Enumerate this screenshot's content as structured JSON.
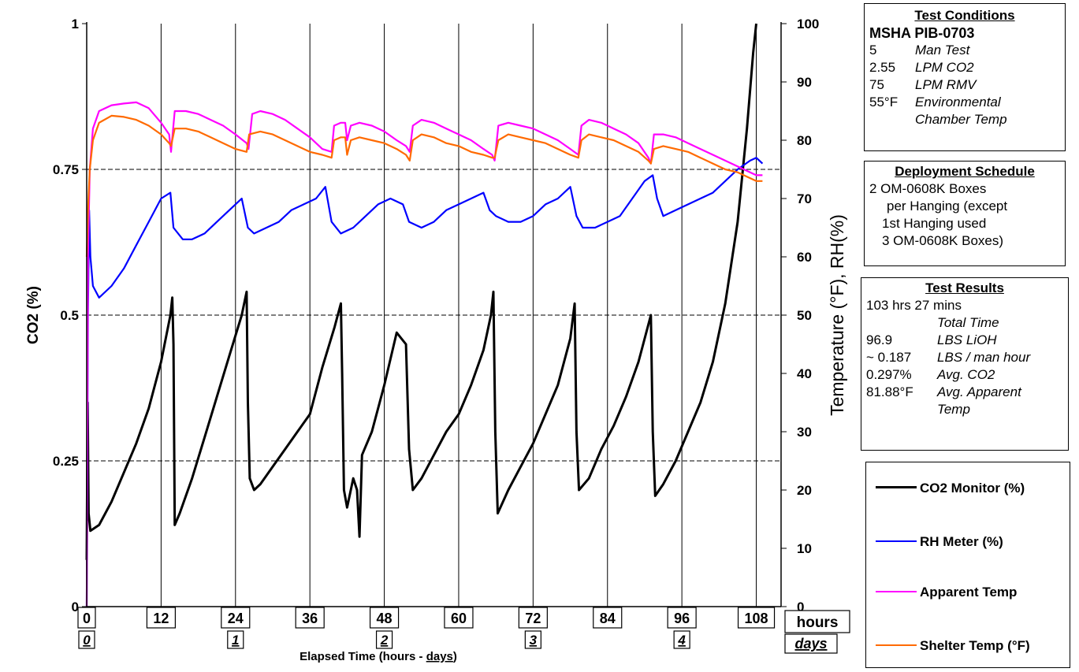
{
  "chart_data": {
    "type": "line",
    "xlabel_prefix": "Elapsed Time (hours - ",
    "xlabel_days": "days",
    "xlabel_suffix": ")",
    "ylabel_left": "CO2 (%)",
    "ylabel_right": "Temperature (°F), RH(%)",
    "xlim": [
      0,
      112
    ],
    "ylim_left": [
      0,
      1
    ],
    "ylim_right": [
      0,
      100
    ],
    "x_ticks": [
      "0",
      "12",
      "24",
      "36",
      "48",
      "60",
      "72",
      "84",
      "96",
      "108"
    ],
    "day_ticks": [
      "0",
      "1",
      "2",
      "3",
      "4"
    ],
    "y_left_ticks": [
      "0",
      "0.25",
      "0.5",
      "0.75",
      "1"
    ],
    "y_right_ticks": [
      "0",
      "10",
      "20",
      "30",
      "40",
      "50",
      "60",
      "70",
      "80",
      "90",
      "100"
    ],
    "hours_label": "hours",
    "days_label": "days",
    "series": [
      {
        "name": "CO2 Monitor (%)",
        "axis": "left",
        "color": "#000000",
        "points": [
          [
            0,
            0.08
          ],
          [
            0.15,
            0.35
          ],
          [
            0.3,
            0.16
          ],
          [
            0.6,
            0.13
          ],
          [
            2,
            0.14
          ],
          [
            4,
            0.18
          ],
          [
            6,
            0.23
          ],
          [
            8,
            0.28
          ],
          [
            10,
            0.34
          ],
          [
            12,
            0.42
          ],
          [
            13.5,
            0.5
          ],
          [
            13.8,
            0.53
          ],
          [
            14.0,
            0.45
          ],
          [
            14.2,
            0.14
          ],
          [
            15,
            0.16
          ],
          [
            17,
            0.22
          ],
          [
            19,
            0.29
          ],
          [
            21,
            0.36
          ],
          [
            23,
            0.43
          ],
          [
            25,
            0.5
          ],
          [
            25.8,
            0.54
          ],
          [
            26.0,
            0.35
          ],
          [
            26.3,
            0.22
          ],
          [
            27,
            0.2
          ],
          [
            28,
            0.21
          ],
          [
            30,
            0.24
          ],
          [
            32,
            0.27
          ],
          [
            34,
            0.3
          ],
          [
            36,
            0.33
          ],
          [
            38,
            0.41
          ],
          [
            40,
            0.48
          ],
          [
            41,
            0.52
          ],
          [
            41.2,
            0.4
          ],
          [
            41.5,
            0.2
          ],
          [
            42,
            0.17
          ],
          [
            43,
            0.22
          ],
          [
            43.6,
            0.2
          ],
          [
            44,
            0.12
          ],
          [
            44.4,
            0.26
          ],
          [
            46,
            0.3
          ],
          [
            48,
            0.38
          ],
          [
            50,
            0.47
          ],
          [
            51.5,
            0.45
          ],
          [
            52,
            0.27
          ],
          [
            52.6,
            0.2
          ],
          [
            54,
            0.22
          ],
          [
            56,
            0.26
          ],
          [
            58,
            0.3
          ],
          [
            60,
            0.33
          ],
          [
            62,
            0.38
          ],
          [
            64,
            0.44
          ],
          [
            65.2,
            0.5
          ],
          [
            65.6,
            0.54
          ],
          [
            65.9,
            0.3
          ],
          [
            66.3,
            0.16
          ],
          [
            68,
            0.2
          ],
          [
            70,
            0.24
          ],
          [
            72,
            0.28
          ],
          [
            74,
            0.33
          ],
          [
            76,
            0.38
          ],
          [
            78,
            0.46
          ],
          [
            78.7,
            0.52
          ],
          [
            79,
            0.3
          ],
          [
            79.4,
            0.2
          ],
          [
            81,
            0.22
          ],
          [
            83,
            0.27
          ],
          [
            85,
            0.31
          ],
          [
            87,
            0.36
          ],
          [
            89,
            0.42
          ],
          [
            90.5,
            0.48
          ],
          [
            91,
            0.5
          ],
          [
            91.3,
            0.3
          ],
          [
            91.7,
            0.19
          ],
          [
            93,
            0.21
          ],
          [
            95,
            0.25
          ],
          [
            97,
            0.3
          ],
          [
            99,
            0.35
          ],
          [
            101,
            0.42
          ],
          [
            103,
            0.52
          ],
          [
            105,
            0.66
          ],
          [
            106.5,
            0.82
          ],
          [
            107.5,
            0.95
          ],
          [
            108,
            1.0
          ]
        ]
      },
      {
        "name": "RH Meter (%)",
        "axis": "right",
        "color": "#0000ff",
        "points": [
          [
            0,
            0
          ],
          [
            0.2,
            50
          ],
          [
            0.4,
            68
          ],
          [
            0.6,
            60
          ],
          [
            1,
            55
          ],
          [
            2,
            53
          ],
          [
            4,
            55
          ],
          [
            6,
            58
          ],
          [
            8,
            62
          ],
          [
            10,
            66
          ],
          [
            12,
            70
          ],
          [
            13.5,
            71
          ],
          [
            14,
            65
          ],
          [
            15.5,
            63
          ],
          [
            17,
            63
          ],
          [
            19,
            64
          ],
          [
            21,
            66
          ],
          [
            23,
            68
          ],
          [
            25,
            70
          ],
          [
            26,
            65
          ],
          [
            27,
            64
          ],
          [
            29,
            65
          ],
          [
            31,
            66
          ],
          [
            33,
            68
          ],
          [
            35,
            69
          ],
          [
            37,
            70
          ],
          [
            38.5,
            72
          ],
          [
            39.5,
            66
          ],
          [
            41,
            64
          ],
          [
            43,
            65
          ],
          [
            45,
            67
          ],
          [
            47,
            69
          ],
          [
            49,
            70
          ],
          [
            51,
            69
          ],
          [
            52,
            66
          ],
          [
            54,
            65
          ],
          [
            56,
            66
          ],
          [
            58,
            68
          ],
          [
            60,
            69
          ],
          [
            62,
            70
          ],
          [
            64,
            71
          ],
          [
            65,
            68
          ],
          [
            66,
            67
          ],
          [
            68,
            66
          ],
          [
            70,
            66
          ],
          [
            72,
            67
          ],
          [
            74,
            69
          ],
          [
            76,
            70
          ],
          [
            78,
            72
          ],
          [
            79,
            67
          ],
          [
            80,
            65
          ],
          [
            82,
            65
          ],
          [
            84,
            66
          ],
          [
            86,
            67
          ],
          [
            88,
            70
          ],
          [
            90,
            73
          ],
          [
            91.3,
            74
          ],
          [
            92,
            70
          ],
          [
            93,
            67
          ],
          [
            95,
            68
          ],
          [
            97,
            69
          ],
          [
            99,
            70
          ],
          [
            101,
            71
          ],
          [
            103,
            73
          ],
          [
            105,
            75
          ],
          [
            107,
            76.5
          ],
          [
            108,
            77
          ],
          [
            109,
            76
          ]
        ]
      },
      {
        "name": "Apparent Temp",
        "axis": "right",
        "color": "#ff00ff",
        "points": [
          [
            0,
            0
          ],
          [
            0.2,
            60
          ],
          [
            0.5,
            75
          ],
          [
            1,
            82
          ],
          [
            2,
            85
          ],
          [
            4,
            86
          ],
          [
            6,
            86.3
          ],
          [
            8,
            86.5
          ],
          [
            10,
            85.5
          ],
          [
            12,
            83
          ],
          [
            13.3,
            81
          ],
          [
            13.6,
            78
          ],
          [
            14.2,
            85
          ],
          [
            16,
            85
          ],
          [
            18,
            84.5
          ],
          [
            20,
            83.5
          ],
          [
            22,
            82.5
          ],
          [
            24,
            81
          ],
          [
            25.8,
            79.5
          ],
          [
            26.1,
            78.5
          ],
          [
            26.7,
            84.5
          ],
          [
            28,
            85
          ],
          [
            30,
            84.5
          ],
          [
            32,
            83.5
          ],
          [
            34,
            82
          ],
          [
            36,
            80.5
          ],
          [
            38,
            78.5
          ],
          [
            39.5,
            78
          ],
          [
            39.9,
            82.5
          ],
          [
            41,
            83
          ],
          [
            41.7,
            83
          ],
          [
            42,
            80
          ],
          [
            42.6,
            82.5
          ],
          [
            44,
            83
          ],
          [
            46,
            82.5
          ],
          [
            48,
            81.5
          ],
          [
            50,
            80
          ],
          [
            51.5,
            79
          ],
          [
            52.1,
            78
          ],
          [
            52.6,
            82.5
          ],
          [
            54,
            83.5
          ],
          [
            56,
            83
          ],
          [
            58,
            82
          ],
          [
            60,
            81
          ],
          [
            62,
            80
          ],
          [
            64,
            78.5
          ],
          [
            65.4,
            77.5
          ],
          [
            65.8,
            76.5
          ],
          [
            66.4,
            82.5
          ],
          [
            68,
            83
          ],
          [
            70,
            82.5
          ],
          [
            72,
            82
          ],
          [
            74,
            81
          ],
          [
            76,
            80
          ],
          [
            78,
            78.5
          ],
          [
            79.3,
            77.5
          ],
          [
            79.8,
            82.5
          ],
          [
            81,
            83.5
          ],
          [
            83,
            83
          ],
          [
            85,
            82
          ],
          [
            87,
            81
          ],
          [
            89,
            79.5
          ],
          [
            90.6,
            77
          ],
          [
            91,
            76
          ],
          [
            91.5,
            81
          ],
          [
            93,
            81
          ],
          [
            95,
            80.5
          ],
          [
            97,
            79.5
          ],
          [
            99,
            78.5
          ],
          [
            101,
            77.5
          ],
          [
            103,
            76.5
          ],
          [
            105,
            75.5
          ],
          [
            107,
            74.5
          ],
          [
            108,
            74
          ],
          [
            109,
            74
          ]
        ]
      },
      {
        "name": "Shelter Temp (°F)",
        "axis": "right",
        "color": "#ff6a00",
        "points": [
          [
            0,
            60
          ],
          [
            0.2,
            68
          ],
          [
            0.5,
            75
          ],
          [
            1,
            80
          ],
          [
            2,
            83
          ],
          [
            4,
            84.2
          ],
          [
            6,
            84
          ],
          [
            8,
            83.5
          ],
          [
            10,
            82.5
          ],
          [
            12,
            81
          ],
          [
            13.3,
            79.5
          ],
          [
            13.6,
            79
          ],
          [
            14.2,
            82
          ],
          [
            16,
            82
          ],
          [
            18,
            81.5
          ],
          [
            20,
            80.5
          ],
          [
            22,
            79.5
          ],
          [
            24,
            78.5
          ],
          [
            25.8,
            78
          ],
          [
            26.2,
            81
          ],
          [
            28,
            81.5
          ],
          [
            30,
            81
          ],
          [
            32,
            80
          ],
          [
            34,
            79
          ],
          [
            36,
            78
          ],
          [
            38,
            77.5
          ],
          [
            39.5,
            77
          ],
          [
            39.9,
            80
          ],
          [
            41,
            80.5
          ],
          [
            41.7,
            80.5
          ],
          [
            42,
            77.5
          ],
          [
            42.6,
            80
          ],
          [
            44,
            80.5
          ],
          [
            46,
            80
          ],
          [
            48,
            79.5
          ],
          [
            50,
            78.5
          ],
          [
            51.5,
            77.5
          ],
          [
            52.1,
            76.5
          ],
          [
            52.6,
            80
          ],
          [
            54,
            81
          ],
          [
            56,
            80.5
          ],
          [
            58,
            79.5
          ],
          [
            60,
            79
          ],
          [
            62,
            78
          ],
          [
            64,
            77.5
          ],
          [
            65.4,
            77
          ],
          [
            65.8,
            77
          ],
          [
            66.4,
            80
          ],
          [
            68,
            81
          ],
          [
            70,
            80.5
          ],
          [
            72,
            80
          ],
          [
            74,
            79.5
          ],
          [
            76,
            78.5
          ],
          [
            78,
            77.5
          ],
          [
            79.3,
            77
          ],
          [
            79.8,
            80
          ],
          [
            81,
            81
          ],
          [
            83,
            80.5
          ],
          [
            85,
            80
          ],
          [
            87,
            79
          ],
          [
            89,
            78
          ],
          [
            90.6,
            76.5
          ],
          [
            91,
            76
          ],
          [
            91.5,
            78.5
          ],
          [
            93,
            79
          ],
          [
            95,
            78.5
          ],
          [
            97,
            78
          ],
          [
            99,
            77
          ],
          [
            101,
            76
          ],
          [
            103,
            75
          ],
          [
            105,
            74.5
          ],
          [
            107,
            73.5
          ],
          [
            108,
            73
          ],
          [
            109,
            73
          ]
        ]
      }
    ]
  },
  "panels": {
    "conditions": {
      "title": "Test Conditions",
      "subtitle": "MSHA PIB-0703",
      "rows": [
        {
          "value": "5",
          "label": "Man Test"
        },
        {
          "value": "2.55",
          "label": "LPM CO2"
        },
        {
          "value": "75",
          "label": "LPM RMV"
        },
        {
          "value": "55°F",
          "label": "Environmental"
        },
        {
          "value": "",
          "label": "Chamber Temp"
        }
      ]
    },
    "deploy": {
      "title": "Deployment Schedule",
      "lines": [
        "2 OM-0608K Boxes",
        "per Hanging (except",
        "1st Hanging used",
        "3 OM-0608K Boxes)"
      ]
    },
    "results": {
      "title": "Test Results",
      "first": "103 hrs 27 mins",
      "first_label": "Total Time",
      "rows": [
        {
          "value": "96.9",
          "label": "LBS LiOH"
        },
        {
          "value": "~ 0.187",
          "label": "LBS / man hour"
        },
        {
          "value": "0.297%",
          "label": "Avg. CO2"
        },
        {
          "value": "81.88°F",
          "label": "Avg. Apparent"
        },
        {
          "value": "",
          "label": "Temp"
        }
      ]
    }
  }
}
